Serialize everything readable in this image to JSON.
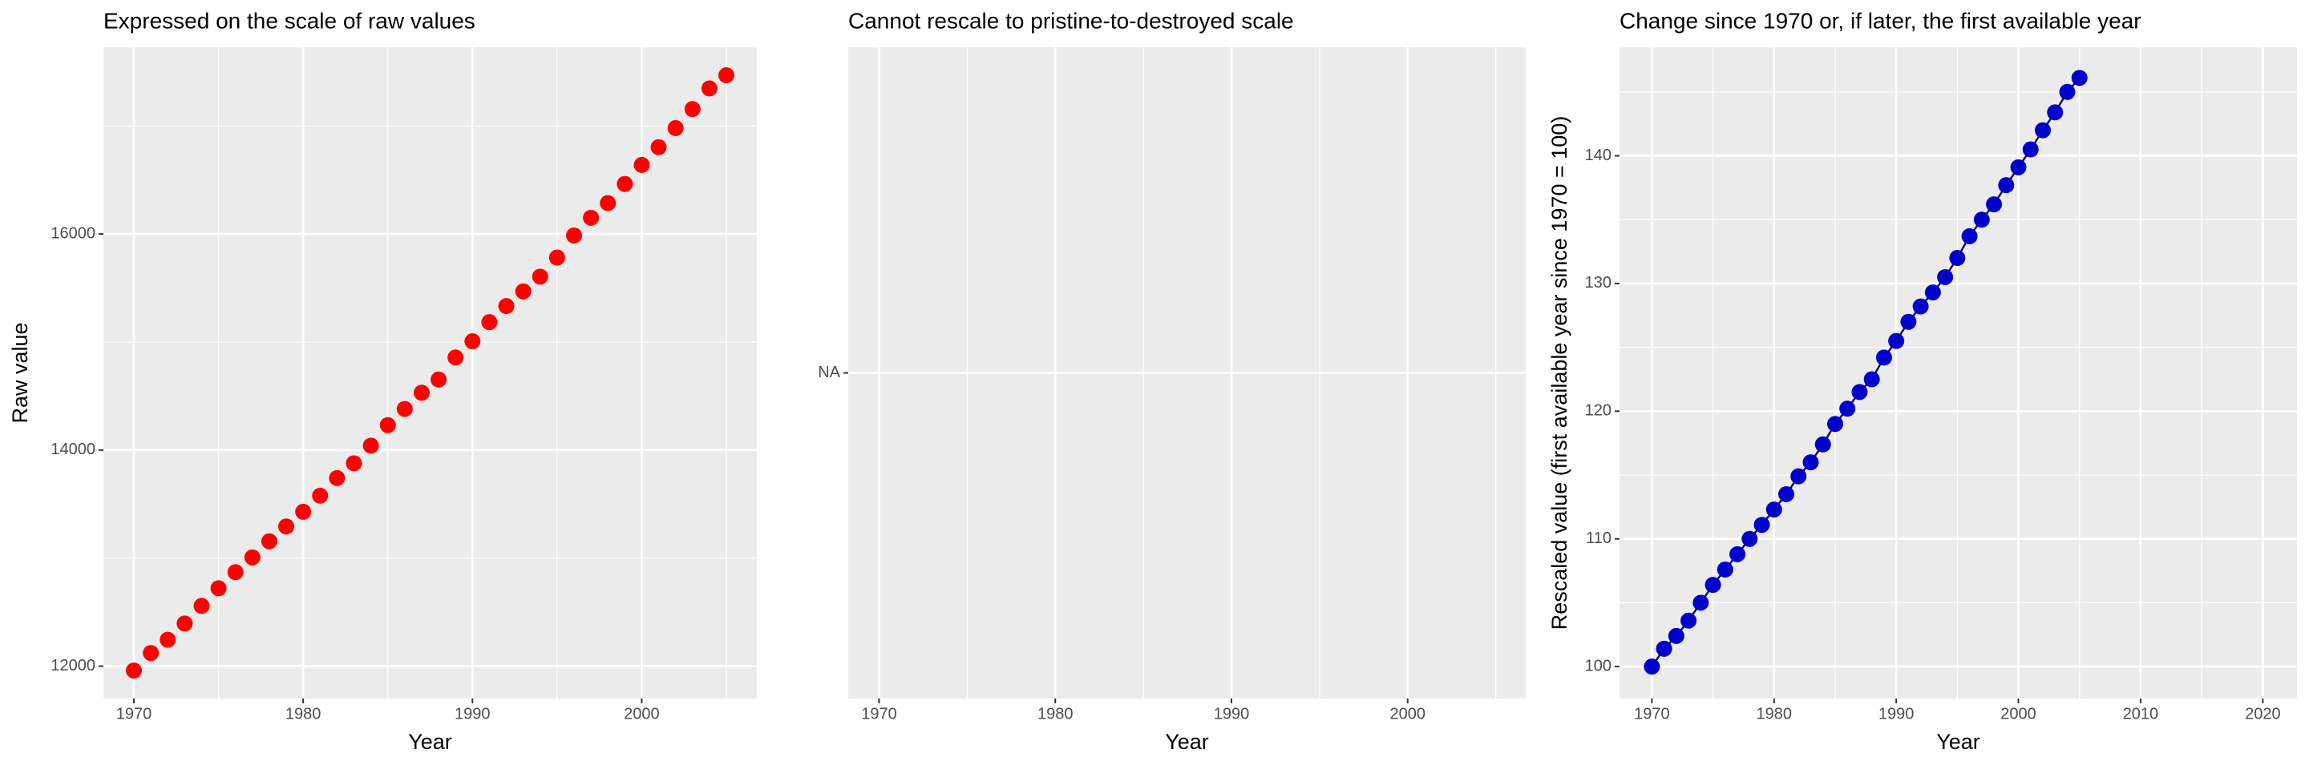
{
  "chart_data": [
    {
      "type": "scatter",
      "title": "Expressed on the scale of raw values",
      "x_label": "Year",
      "y_label": "Raw value",
      "x": [
        1970,
        1971,
        1972,
        1973,
        1974,
        1975,
        1976,
        1977,
        1978,
        1979,
        1980,
        1981,
        1982,
        1983,
        1984,
        1985,
        1986,
        1987,
        1988,
        1989,
        1990,
        1991,
        1992,
        1993,
        1994,
        1995,
        1996,
        1997,
        1998,
        1999,
        2000,
        2001,
        2002,
        2003,
        2004,
        2005
      ],
      "values": [
        11960,
        12122,
        12245,
        12395,
        12558,
        12721,
        12870,
        13007,
        13156,
        13293,
        13429,
        13578,
        13741,
        13878,
        14041,
        14231,
        14381,
        14531,
        14653,
        14857,
        15007,
        15184,
        15333,
        15469,
        15605,
        15782,
        15986,
        16150,
        16286,
        16463,
        16639,
        16803,
        16980,
        17156,
        17347,
        17469
      ],
      "color": "#ff0000",
      "xlim": [
        1968.2,
        2006.8
      ],
      "ylim": [
        11701,
        17728
      ],
      "xticks": [
        1970,
        1980,
        1990,
        2000
      ],
      "yticks": [
        12000,
        14000,
        16000
      ],
      "grid": true
    },
    {
      "type": "scatter",
      "title": "Cannot rescale to pristine-to-destroyed scale",
      "x_label": "Year",
      "x": [],
      "values": [],
      "color": "#ff0000",
      "xlim": [
        1968.25,
        2006.7
      ],
      "xticks": [
        1970,
        1980,
        1990,
        2000
      ],
      "yticks": [
        {
          "value": null,
          "label": "NA"
        }
      ],
      "grid": true
    },
    {
      "type": "line",
      "title": "Change since 1970 or, if later, the first available year",
      "x_label": "Year",
      "y_label": "Rescaled value (first available year since 1970 = 100)",
      "x": [
        1970,
        1971,
        1972,
        1973,
        1974,
        1975,
        1976,
        1977,
        1978,
        1979,
        1980,
        1981,
        1982,
        1983,
        1984,
        1985,
        1986,
        1987,
        1988,
        1989,
        1990,
        1991,
        1992,
        1993,
        1994,
        1995,
        1996,
        1997,
        1998,
        1999,
        2000,
        2001,
        2002,
        2003,
        2004,
        2005
      ],
      "values": [
        100.0,
        101.4,
        102.4,
        103.6,
        105.0,
        106.4,
        107.6,
        108.8,
        110.0,
        111.1,
        112.3,
        113.5,
        114.9,
        116.0,
        117.4,
        119.0,
        120.2,
        121.5,
        122.5,
        124.2,
        125.5,
        127.0,
        128.2,
        129.3,
        130.5,
        132.0,
        133.7,
        135.0,
        136.2,
        137.7,
        139.1,
        140.5,
        142.0,
        143.4,
        145.0,
        146.1
      ],
      "color": "#0000cd",
      "line_color": "#14143c",
      "markers": true,
      "xlim": [
        1967.35,
        2022.8
      ],
      "ylim": [
        97.5,
        148.5
      ],
      "xticks": [
        1970,
        1980,
        1990,
        2000,
        2010,
        2020
      ],
      "yticks": [
        100,
        110,
        120,
        130,
        140
      ],
      "grid": true
    }
  ]
}
